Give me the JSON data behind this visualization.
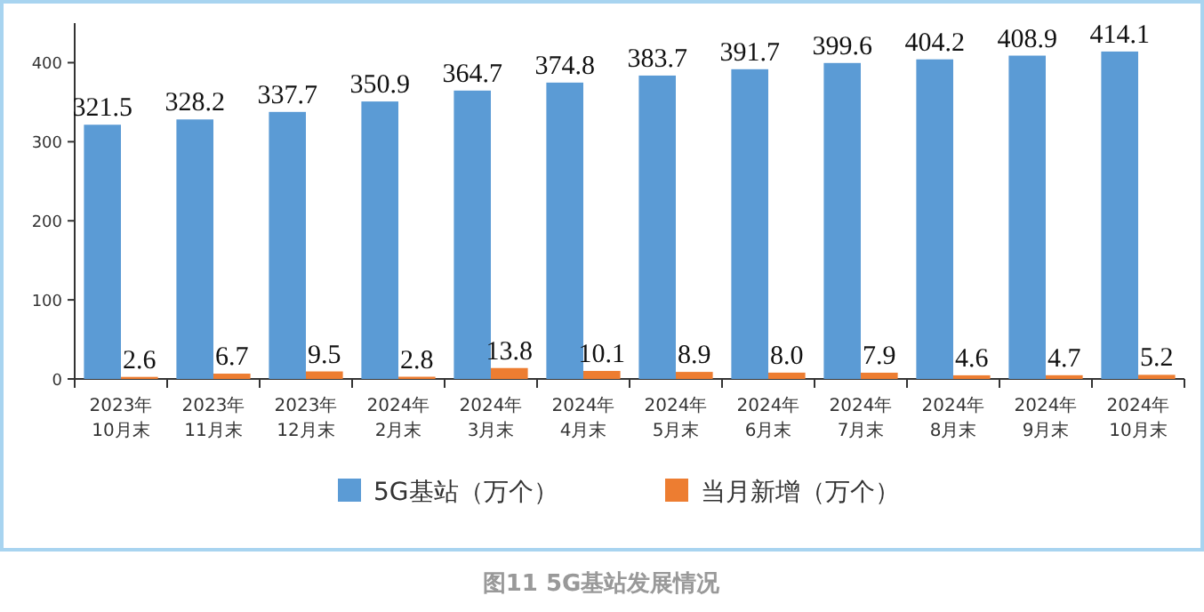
{
  "chart_data": {
    "type": "bar",
    "title": "图11 5G基站发展情况",
    "categories": [
      "2023年\n10月末",
      "2023年\n11月末",
      "2023年\n12月末",
      "2024年\n2月末",
      "2024年\n3月末",
      "2024年\n4月末",
      "2024年\n5月末",
      "2024年\n6月末",
      "2024年\n7月末",
      "2024年\n8月末",
      "2024年\n9月末",
      "2024年\n10月末"
    ],
    "series": [
      {
        "name": "5G基站（万个）",
        "color": "#5b9bd5",
        "values": [
          321.5,
          328.2,
          337.7,
          350.9,
          364.7,
          374.8,
          383.7,
          391.7,
          399.6,
          404.2,
          408.9,
          414.1
        ],
        "value_labels": [
          "321.5",
          "328.2",
          "337.7",
          "350.9",
          "364.7",
          "374.8",
          "383.7",
          "391.7",
          "399.6",
          "404.2",
          "408.9",
          "414.1"
        ]
      },
      {
        "name": "当月新增（万个）",
        "color": "#ed7d31",
        "values": [
          2.6,
          6.7,
          9.5,
          2.8,
          13.8,
          10.1,
          8.9,
          8.0,
          7.9,
          4.6,
          4.7,
          5.2
        ],
        "value_labels": [
          "2.6",
          "6.7",
          "9.5",
          "2.8",
          "13.8",
          "10.1",
          "8.9",
          "8.0",
          "7.9",
          "4.6",
          "4.7",
          "5.2"
        ]
      }
    ],
    "ylim": [
      0,
      450
    ],
    "yticks": [
      0,
      100,
      200,
      300,
      400
    ],
    "grid": false,
    "legend": "bottom"
  }
}
